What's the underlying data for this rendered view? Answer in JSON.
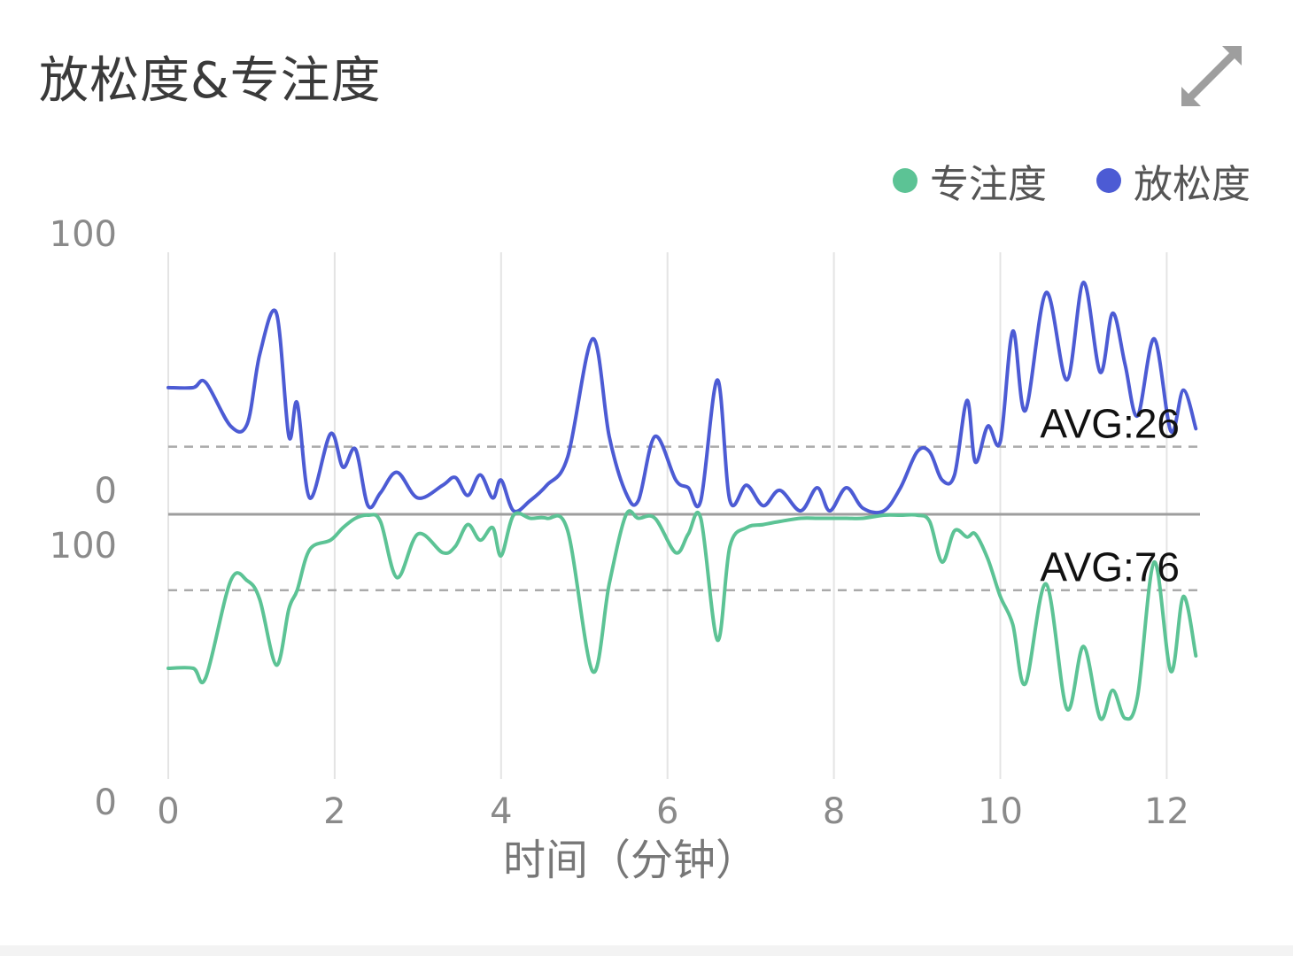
{
  "card": {
    "title": "放松度&专注度",
    "expand_icon": "expand-arrows-icon"
  },
  "legend": [
    {
      "label": "专注度",
      "color": "#5cc395"
    },
    {
      "label": "放松度",
      "color": "#4c5bd4"
    }
  ],
  "chart_data": {
    "type": "line",
    "xlabel": "时间（分钟）",
    "xlim": [
      0,
      12.4
    ],
    "x_ticks": [
      "0",
      "2",
      "4",
      "6",
      "8",
      "10",
      "12"
    ],
    "panels": [
      {
        "series_name": "放松度",
        "color": "#4c5bd4",
        "ylim": [
          0,
          100
        ],
        "y_tick_labels": [
          "100",
          "0"
        ],
        "avg": 26,
        "avg_label": "AVG:26",
        "points": [
          [
            0,
            49
          ],
          [
            0.3,
            49
          ],
          [
            0.45,
            51
          ],
          [
            0.75,
            34
          ],
          [
            0.95,
            35
          ],
          [
            1.1,
            62
          ],
          [
            1.3,
            78
          ],
          [
            1.45,
            30
          ],
          [
            1.55,
            43
          ],
          [
            1.7,
            6
          ],
          [
            1.95,
            31
          ],
          [
            2.1,
            18
          ],
          [
            2.25,
            25
          ],
          [
            2.4,
            3
          ],
          [
            2.55,
            8
          ],
          [
            2.75,
            16
          ],
          [
            3.0,
            6
          ],
          [
            3.3,
            11
          ],
          [
            3.45,
            14
          ],
          [
            3.6,
            7
          ],
          [
            3.75,
            15
          ],
          [
            3.9,
            6
          ],
          [
            4.0,
            13
          ],
          [
            4.15,
            1
          ],
          [
            4.35,
            5
          ],
          [
            4.55,
            11
          ],
          [
            4.8,
            22
          ],
          [
            5.1,
            68
          ],
          [
            5.3,
            30
          ],
          [
            5.5,
            8
          ],
          [
            5.65,
            5
          ],
          [
            5.85,
            30
          ],
          [
            6.1,
            13
          ],
          [
            6.25,
            10
          ],
          [
            6.4,
            5
          ],
          [
            6.6,
            52
          ],
          [
            6.75,
            5
          ],
          [
            6.95,
            11
          ],
          [
            7.15,
            3
          ],
          [
            7.35,
            9
          ],
          [
            7.6,
            1
          ],
          [
            7.8,
            10
          ],
          [
            7.95,
            1
          ],
          [
            8.15,
            10
          ],
          [
            8.35,
            2
          ],
          [
            8.6,
            1
          ],
          [
            8.8,
            10
          ],
          [
            9.0,
            24
          ],
          [
            9.15,
            24
          ],
          [
            9.3,
            13
          ],
          [
            9.45,
            15
          ],
          [
            9.6,
            44
          ],
          [
            9.7,
            20
          ],
          [
            9.85,
            34
          ],
          [
            10.0,
            28
          ],
          [
            10.15,
            71
          ],
          [
            10.3,
            40
          ],
          [
            10.55,
            86
          ],
          [
            10.8,
            52
          ],
          [
            11.0,
            90
          ],
          [
            11.2,
            55
          ],
          [
            11.35,
            78
          ],
          [
            11.5,
            58
          ],
          [
            11.65,
            38
          ],
          [
            11.85,
            68
          ],
          [
            12.05,
            32
          ],
          [
            12.2,
            48
          ],
          [
            12.35,
            33
          ]
        ]
      },
      {
        "series_name": "专注度",
        "color": "#5cc395",
        "ylim": [
          0,
          100
        ],
        "y_tick_labels": [
          "100",
          "0"
        ],
        "avg": 76,
        "avg_label": "AVG:76",
        "points": [
          [
            0,
            51
          ],
          [
            0.3,
            51
          ],
          [
            0.45,
            48
          ],
          [
            0.75,
            79
          ],
          [
            0.95,
            79
          ],
          [
            1.1,
            73
          ],
          [
            1.3,
            52
          ],
          [
            1.45,
            70
          ],
          [
            1.55,
            76
          ],
          [
            1.7,
            89
          ],
          [
            1.95,
            92
          ],
          [
            2.1,
            96
          ],
          [
            2.25,
            99
          ],
          [
            2.4,
            100
          ],
          [
            2.55,
            98
          ],
          [
            2.75,
            80
          ],
          [
            3.0,
            94
          ],
          [
            3.3,
            88
          ],
          [
            3.45,
            90
          ],
          [
            3.6,
            97
          ],
          [
            3.75,
            92
          ],
          [
            3.9,
            96
          ],
          [
            4.0,
            87
          ],
          [
            4.15,
            100
          ],
          [
            4.35,
            99
          ],
          [
            4.55,
            99
          ],
          [
            4.8,
            95
          ],
          [
            5.1,
            50
          ],
          [
            5.3,
            78
          ],
          [
            5.5,
            100
          ],
          [
            5.65,
            99
          ],
          [
            5.85,
            99
          ],
          [
            6.1,
            88
          ],
          [
            6.25,
            94
          ],
          [
            6.4,
            99
          ],
          [
            6.6,
            60
          ],
          [
            6.75,
            90
          ],
          [
            6.95,
            96
          ],
          [
            7.15,
            97
          ],
          [
            7.35,
            98
          ],
          [
            7.6,
            99
          ],
          [
            7.8,
            99
          ],
          [
            7.95,
            99
          ],
          [
            8.15,
            99
          ],
          [
            8.35,
            99
          ],
          [
            8.6,
            100
          ],
          [
            8.8,
            100
          ],
          [
            9.0,
            100
          ],
          [
            9.15,
            98
          ],
          [
            9.3,
            85
          ],
          [
            9.45,
            95
          ],
          [
            9.6,
            93
          ],
          [
            9.7,
            94
          ],
          [
            9.85,
            86
          ],
          [
            10.0,
            74
          ],
          [
            10.15,
            65
          ],
          [
            10.3,
            46
          ],
          [
            10.55,
            78
          ],
          [
            10.8,
            38
          ],
          [
            11.0,
            58
          ],
          [
            11.2,
            35
          ],
          [
            11.35,
            44
          ],
          [
            11.5,
            35
          ],
          [
            11.65,
            42
          ],
          [
            11.85,
            85
          ],
          [
            12.05,
            50
          ],
          [
            12.2,
            74
          ],
          [
            12.35,
            55
          ]
        ]
      }
    ]
  }
}
